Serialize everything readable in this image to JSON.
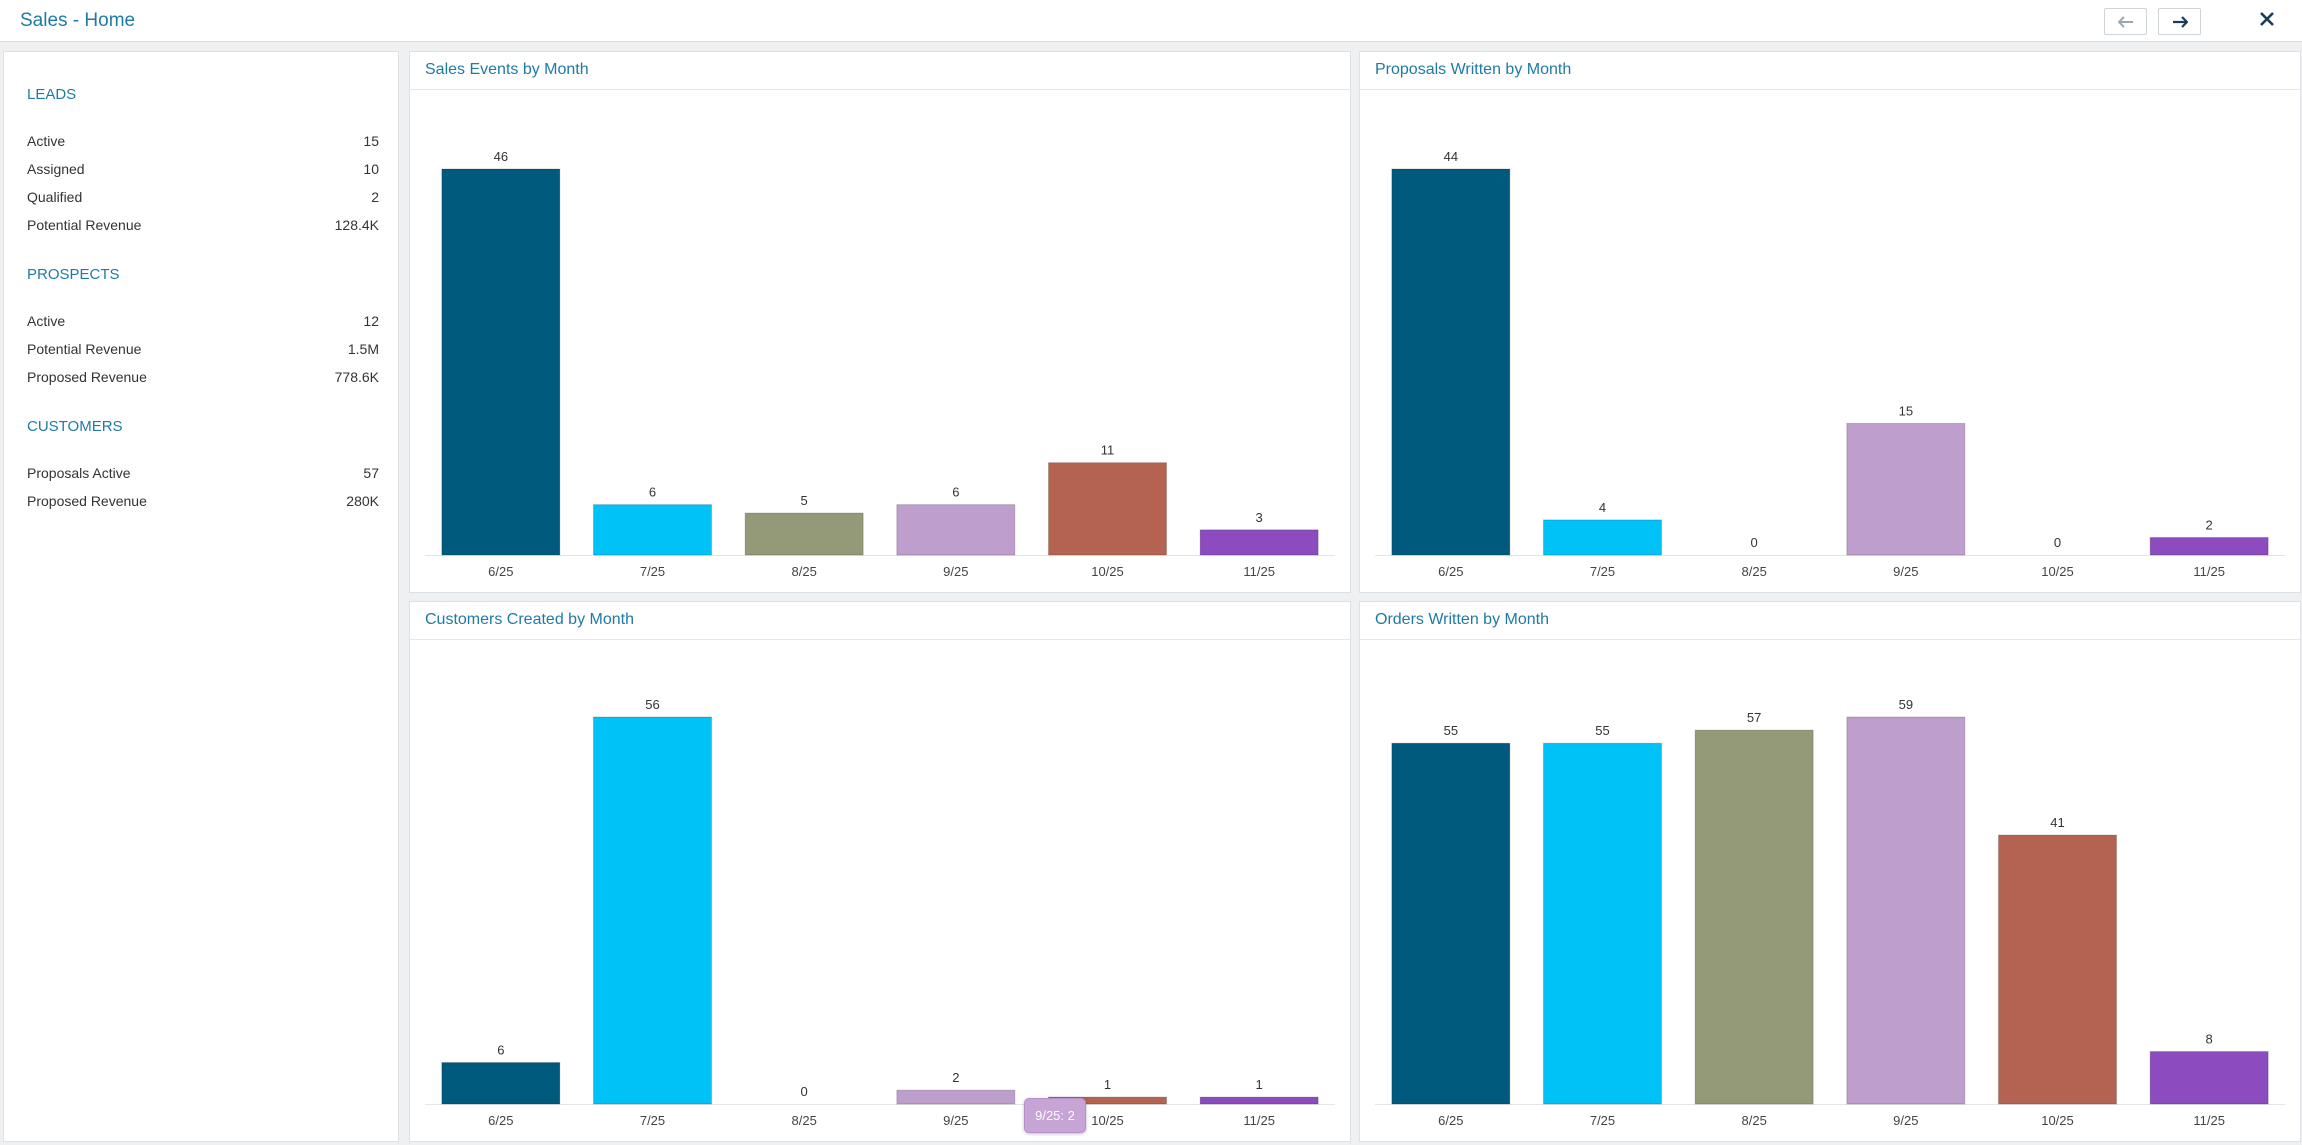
{
  "window": {
    "title": "Sales - Home"
  },
  "toolbar": {
    "back_icon": "arrow-left-icon",
    "forward_icon": "arrow-right-icon",
    "close_icon": "close-icon"
  },
  "sidebar": {
    "leads": {
      "title": "LEADS",
      "rows": [
        {
          "label": "Active",
          "value": "15"
        },
        {
          "label": "Assigned",
          "value": "10"
        },
        {
          "label": "Qualified",
          "value": "2"
        },
        {
          "label": "Potential Revenue",
          "value": "128.4K"
        }
      ]
    },
    "prospects": {
      "title": "PROSPECTS",
      "rows": [
        {
          "label": "Active",
          "value": "12"
        },
        {
          "label": "Potential Revenue",
          "value": "1.5M"
        },
        {
          "label": "Proposed Revenue",
          "value": "778.6K"
        }
      ]
    },
    "customers": {
      "title": "CUSTOMERS",
      "rows": [
        {
          "label": "Proposals Active",
          "value": "57"
        },
        {
          "label": "Proposed Revenue",
          "value": "280K"
        }
      ]
    }
  },
  "colors": [
    "#005a7d",
    "#00c2f7",
    "#949a77",
    "#be9ecc",
    "#b46350",
    "#8c4bbe"
  ],
  "chart_data": [
    {
      "type": "bar",
      "title": "Sales Events by Month",
      "categories": [
        "6/25",
        "7/25",
        "8/25",
        "9/25",
        "10/25",
        "11/25"
      ],
      "values": [
        46,
        6,
        5,
        6,
        11,
        3
      ]
    },
    {
      "type": "bar",
      "title": "Proposals Written by Month",
      "categories": [
        "6/25",
        "7/25",
        "8/25",
        "9/25",
        "10/25",
        "11/25"
      ],
      "values": [
        44,
        4,
        0,
        15,
        0,
        2
      ]
    },
    {
      "type": "bar",
      "title": "Customers Created by Month",
      "categories": [
        "6/25",
        "7/25",
        "8/25",
        "9/25",
        "10/25",
        "11/25"
      ],
      "values": [
        6,
        56,
        0,
        2,
        1,
        1
      ]
    },
    {
      "type": "bar",
      "title": "Orders Written by Month",
      "categories": [
        "6/25",
        "7/25",
        "8/25",
        "9/25",
        "10/25",
        "11/25"
      ],
      "values": [
        55,
        55,
        57,
        59,
        41,
        8
      ]
    }
  ],
  "tooltip": {
    "text": "9/25: 2"
  }
}
